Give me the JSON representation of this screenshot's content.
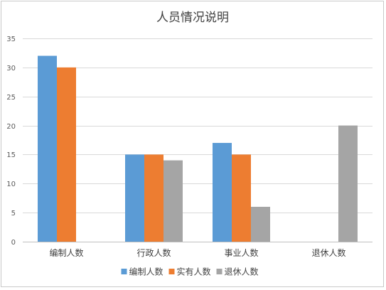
{
  "chart_data": {
    "type": "bar",
    "title": "人员情况说明",
    "categories": [
      "编制人数",
      "行政人数",
      "事业人数",
      "退休人数"
    ],
    "series": [
      {
        "name": "编制人数",
        "color": "#5b9bd5",
        "values": [
          32,
          15,
          17,
          null
        ]
      },
      {
        "name": "实有人数",
        "color": "#ed7d31",
        "values": [
          30,
          15,
          15,
          null
        ]
      },
      {
        "name": "退休人数",
        "color": "#a5a5a5",
        "values": [
          null,
          14,
          6,
          20
        ]
      }
    ],
    "yticks": [
      "0",
      "5",
      "10",
      "15",
      "20",
      "25",
      "30",
      "35"
    ],
    "ylim": [
      0,
      35
    ],
    "grid": true,
    "legend": "bottom"
  }
}
